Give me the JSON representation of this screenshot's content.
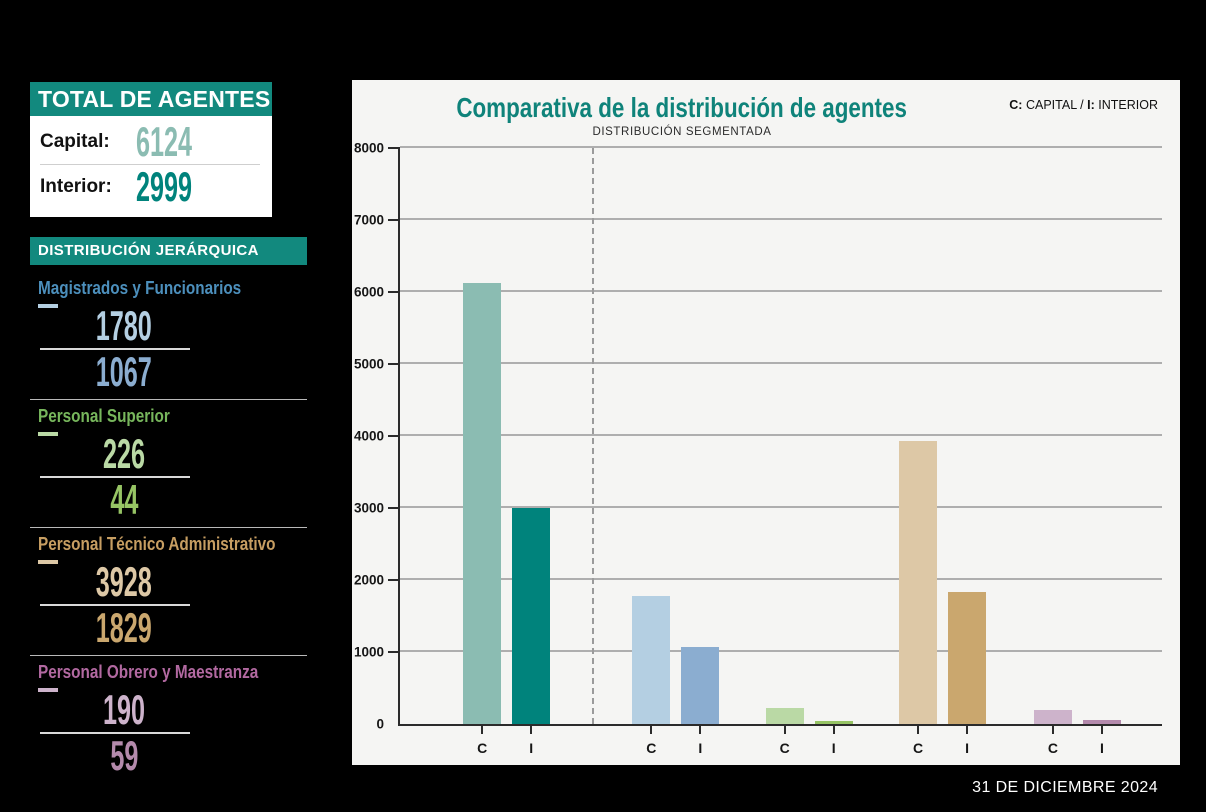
{
  "page": {
    "date_stamp": "31 DE DICIEMBRE 2024"
  },
  "totals_panel": {
    "header": "TOTAL DE AGENTES",
    "capital_label": "Capital:",
    "capital_value": "6124",
    "capital_color": "#8bbcb2",
    "interior_label": "Interior:",
    "interior_value": "2999",
    "interior_color": "#00837c"
  },
  "hierarchy_panel": {
    "header": "DISTRIBUCIÓN JERÁRQUICA",
    "categories": [
      {
        "name": "Magistrados y Funcionarios",
        "title_color": "#4c8fbc",
        "capital": "1780",
        "capital_color": "#b4cfe2",
        "interior": "1067",
        "interior_color": "#8badd0"
      },
      {
        "name": "Personal Superior",
        "title_color": "#77b65c",
        "capital": "226",
        "capital_color": "#bad9a5",
        "interior": "44",
        "interior_color": "#96c464"
      },
      {
        "name": "Personal Técnico Administrativo",
        "title_color": "#c79e62",
        "capital": "3928",
        "capital_color": "#ddc8a6",
        "interior": "1829",
        "interior_color": "#caa76e"
      },
      {
        "name": "Personal Obrero y Maestranza",
        "title_color": "#b269a1",
        "capital": "190",
        "capital_color": "#cdb3cb",
        "interior": "59",
        "interior_color": "#b48aac"
      }
    ]
  },
  "chart": {
    "title": "Comparativa de la distribución de agentes",
    "subtitle": "DISTRIBUCIÓN SEGMENTADA",
    "legend_c_key": "C:",
    "legend_c_text": "CAPITAL",
    "legend_sep": "/",
    "legend_i_key": "I:",
    "legend_i_text": "INTERIOR"
  },
  "chart_data": {
    "type": "bar",
    "title": "Comparativa de la distribución de agentes",
    "subtitle": "DISTRIBUCIÓN SEGMENTADA",
    "legend": "C: CAPITAL / I: INTERIOR",
    "categories": [
      "Total de agentes",
      "Magistrados y Funcionarios",
      "Personal Superior",
      "Personal Técnico Administrativo",
      "Personal Obrero y Maestranza"
    ],
    "group_slugs": [
      "total",
      "magistrados",
      "superior",
      "tecnico",
      "obrero"
    ],
    "bar_tick_labels": [
      "C",
      "I"
    ],
    "series": [
      {
        "name": "Capital",
        "values": [
          6124,
          1780,
          226,
          3928,
          190
        ],
        "colors": [
          "#8bbcb2",
          "#b4cfe2",
          "#bad9a5",
          "#ddc8a6",
          "#cdb3cb"
        ]
      },
      {
        "name": "Interior",
        "values": [
          2999,
          1067,
          44,
          1829,
          59
        ],
        "colors": [
          "#00837c",
          "#8badd0",
          "#96c464",
          "#caa76e",
          "#b48aac"
        ]
      }
    ],
    "ylim": [
      0,
      8000
    ],
    "ytick_step": 1000,
    "grid": true,
    "legend_position": "top-right",
    "separator_x_pct": 25.2,
    "group_centers_pct": [
      14,
      36.2,
      53.7,
      71.2,
      88.9
    ]
  }
}
